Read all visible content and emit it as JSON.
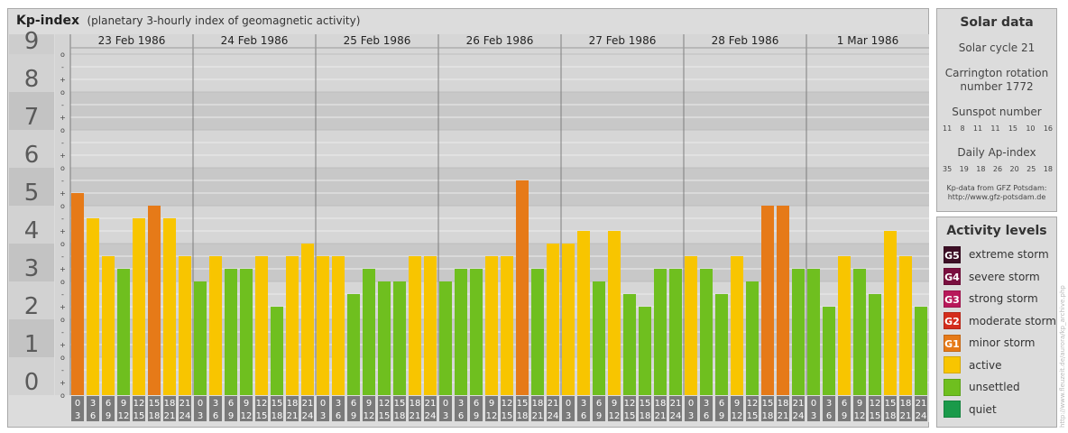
{
  "header": {
    "title": "Kp-index",
    "subtitle": "(planetary 3-hourly index of geomagnetic activity)"
  },
  "chart_data": {
    "type": "bar",
    "title": "Kp-index",
    "subtitle": "(planetary 3-hourly index of geomagnetic activity)",
    "y_levels": [
      "0",
      "1",
      "2",
      "3",
      "4",
      "5",
      "6",
      "7",
      "8",
      "9"
    ],
    "y_sublabels": [
      "o",
      "+",
      "-",
      "o",
      "+",
      "-",
      "o",
      "+",
      "-",
      "o",
      "+",
      "-",
      "o",
      "+",
      "-",
      "o",
      "+",
      "-",
      "o",
      "+",
      "-",
      "o",
      "+",
      "-",
      "o",
      "+",
      "-",
      "o"
    ],
    "ylim": [
      0,
      9
    ],
    "days": [
      "23 Feb 1986",
      "24 Feb 1986",
      "25 Feb 1986",
      "26 Feb 1986",
      "27 Feb 1986",
      "28 Feb 1986",
      "1 Mar 1986"
    ],
    "intervals": [
      {
        "start": "0",
        "end": "3"
      },
      {
        "start": "3",
        "end": "6"
      },
      {
        "start": "6",
        "end": "9"
      },
      {
        "start": "9",
        "end": "12"
      },
      {
        "start": "12",
        "end": "15"
      },
      {
        "start": "15",
        "end": "18"
      },
      {
        "start": "18",
        "end": "21"
      },
      {
        "start": "21",
        "end": "24"
      }
    ],
    "values": [
      [
        5.333,
        4.667,
        3.667,
        3.333,
        4.667,
        5.0,
        4.667,
        3.667
      ],
      [
        3.0,
        3.667,
        3.333,
        3.333,
        3.667,
        2.333,
        3.667,
        4.0
      ],
      [
        3.667,
        3.667,
        2.667,
        3.333,
        3.0,
        3.0,
        3.667,
        3.667
      ],
      [
        3.0,
        3.333,
        3.333,
        3.667,
        3.667,
        5.667,
        3.333,
        4.0
      ],
      [
        4.0,
        4.333,
        3.0,
        4.333,
        2.667,
        2.333,
        3.333,
        3.333
      ],
      [
        3.667,
        3.333,
        2.667,
        3.667,
        3.0,
        5.0,
        5.0,
        3.333
      ],
      [
        3.333,
        2.333,
        3.667,
        3.333,
        2.667,
        4.333,
        3.667,
        2.333
      ]
    ]
  },
  "solar": {
    "title": "Solar data",
    "cycle": "Solar cycle 21",
    "carrington_line1": "Carrington rotation",
    "carrington_line2": "number 1772",
    "sunspot_label": "Sunspot number",
    "sunspot_values": [
      "11",
      "8",
      "11",
      "11",
      "15",
      "10",
      "16"
    ],
    "ap_label": "Daily Ap-index",
    "ap_values": [
      "35",
      "19",
      "18",
      "26",
      "20",
      "25",
      "18"
    ],
    "credit_line1": "Kp-data from GFZ Potsdam:",
    "credit_line2": "http://www.gfz-potsdam.de"
  },
  "legend": {
    "title": "Activity levels",
    "items": [
      {
        "badge": "G5",
        "label": "extreme storm",
        "color": "#3d0f26"
      },
      {
        "badge": "G4",
        "label": "severe storm",
        "color": "#7a0f3f"
      },
      {
        "badge": "G3",
        "label": "strong storm",
        "color": "#b8185a"
      },
      {
        "badge": "G2",
        "label": "moderate storm",
        "color": "#d42d1c"
      },
      {
        "badge": "G1",
        "label": "minor storm",
        "color": "#e67a18"
      },
      {
        "badge": "",
        "label": "active",
        "color": "#f8c500"
      },
      {
        "badge": "",
        "label": "unsettled",
        "color": "#6fbf1f"
      },
      {
        "badge": "",
        "label": "quiet",
        "color": "#1a9a4a"
      }
    ]
  },
  "colors": {
    "quiet": "#1a9a4a",
    "unsettled": "#6fbf1f",
    "active": "#f8c500",
    "g1": "#e67a18",
    "g2": "#d42d1c",
    "g3": "#b8185a",
    "g4": "#7a0f3f",
    "g5": "#3d0f26"
  },
  "watermark": "http://www.fleuzeit.de/aurora/kp_archive.php"
}
